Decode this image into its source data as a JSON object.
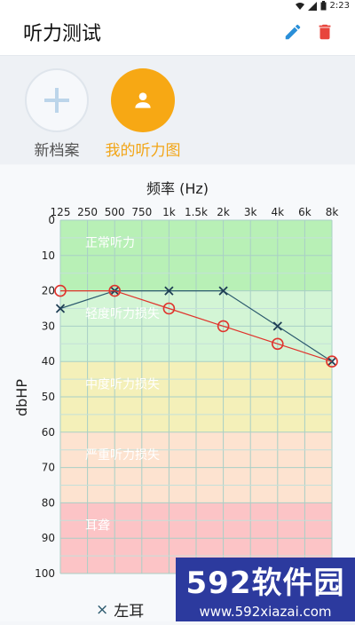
{
  "status_bar": {
    "time": "2:23"
  },
  "header": {
    "title": "听力测试"
  },
  "profiles": [
    {
      "label": "新档案",
      "color": "#555555"
    },
    {
      "label": "我的听力图",
      "color": "#f2a516"
    }
  ],
  "chart_data": {
    "type": "line",
    "title": "",
    "xlabel": "频率 (Hz)",
    "ylabel": "dbHP",
    "x_ticks": [
      "125",
      "250",
      "500",
      "750",
      "1k",
      "1.5k",
      "2k",
      "3k",
      "4k",
      "6k",
      "8k"
    ],
    "y_ticks": [
      0,
      10,
      20,
      30,
      40,
      50,
      60,
      70,
      80,
      90,
      100
    ],
    "ylim": [
      0,
      100
    ],
    "y_inverted": true,
    "grid": true,
    "zones": [
      {
        "name": "正常听力",
        "from": 0,
        "to": 20,
        "color": "#b8f0b6"
      },
      {
        "name": "轻度听力损失",
        "from": 20,
        "to": 40,
        "color": "#d3f5d5"
      },
      {
        "name": "中度听力损失",
        "from": 40,
        "to": 60,
        "color": "#f4f0b9"
      },
      {
        "name": "严重听力损失",
        "from": 60,
        "to": 80,
        "color": "#fde3d0"
      },
      {
        "name": "耳聋",
        "from": 80,
        "to": 100,
        "color": "#fcc4c6"
      }
    ],
    "series": [
      {
        "name": "左耳",
        "marker": "x",
        "color": "#2c5a6e",
        "points": [
          [
            "125",
            25
          ],
          [
            "500",
            20
          ],
          [
            "1k",
            20
          ],
          [
            "2k",
            20
          ],
          [
            "4k",
            30
          ],
          [
            "8k",
            40
          ]
        ]
      },
      {
        "name": "",
        "marker": "o",
        "color": "#e0332c",
        "points": [
          [
            "125",
            20
          ],
          [
            "500",
            20
          ],
          [
            "1k",
            25
          ],
          [
            "2k",
            30
          ],
          [
            "4k",
            35
          ],
          [
            "8k",
            40
          ]
        ]
      }
    ]
  },
  "legend": {
    "marker": "×",
    "label": "左耳"
  },
  "watermark": {
    "logo_text": "592软件园",
    "url": "www.592xiazai.com"
  }
}
